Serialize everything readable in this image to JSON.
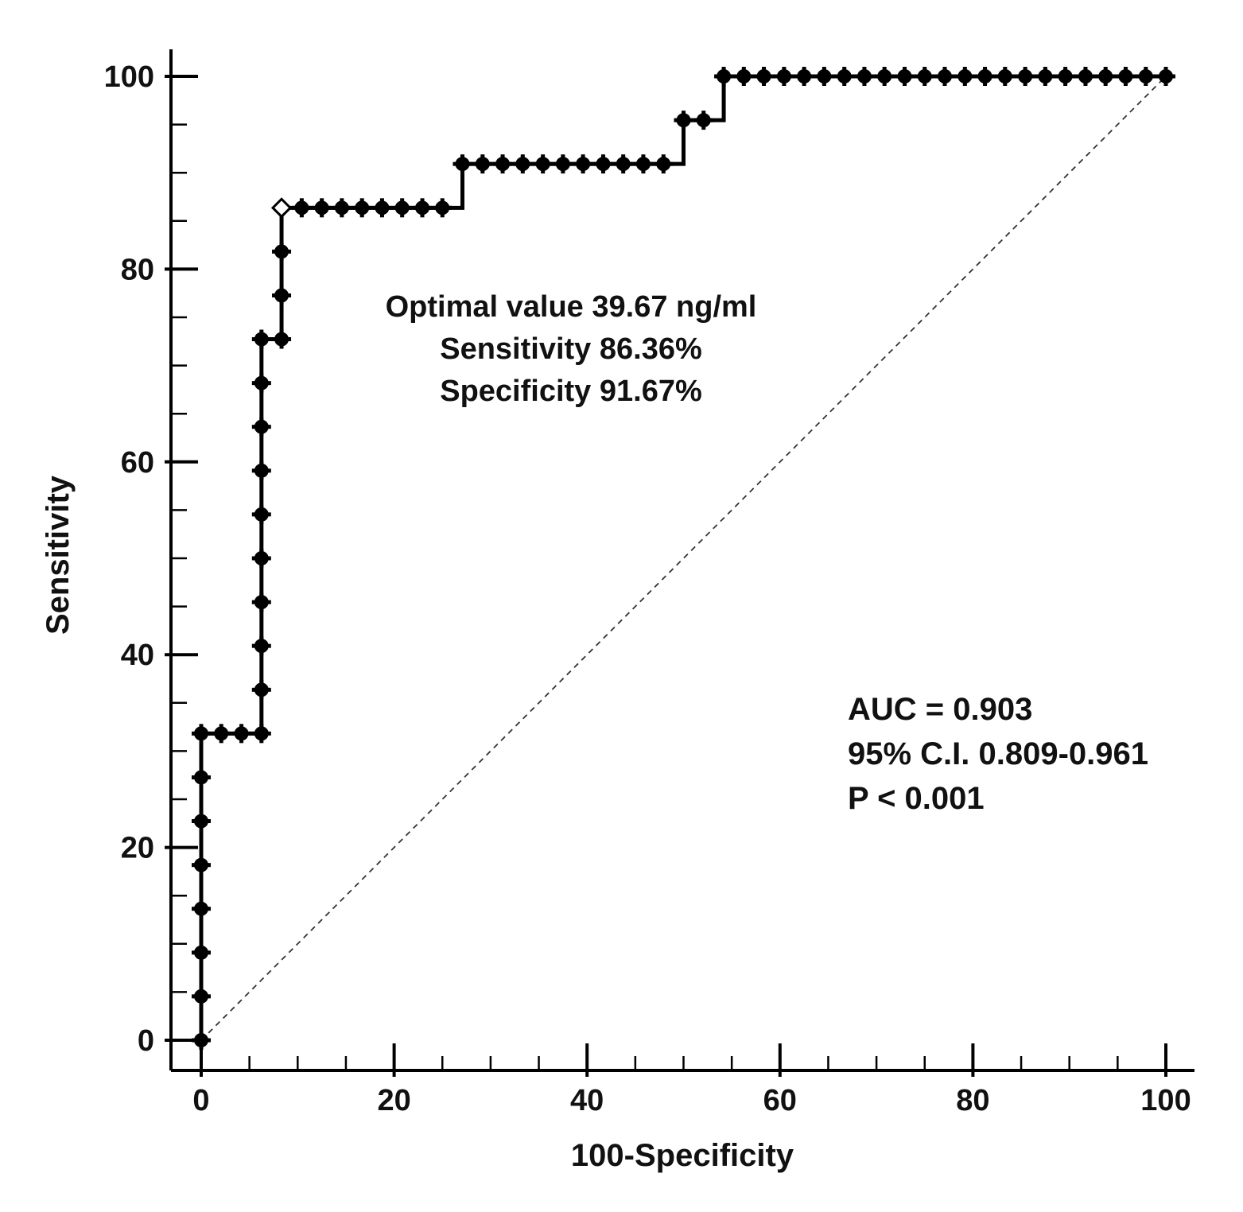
{
  "chart_data": {
    "type": "line",
    "title": "",
    "xlabel": "100-Specificity",
    "ylabel": "Sensitivity",
    "xlim": [
      0,
      100
    ],
    "ylim": [
      0,
      100
    ],
    "xticks": [
      0,
      20,
      40,
      60,
      80,
      100
    ],
    "yticks": [
      0,
      20,
      40,
      60,
      80,
      100
    ],
    "grid": false,
    "series": [
      {
        "name": "ROC curve",
        "step": true,
        "x": [
          0,
          0,
          0,
          0,
          0,
          0,
          0,
          0,
          2.08,
          4.17,
          6.25,
          6.25,
          6.25,
          6.25,
          6.25,
          6.25,
          6.25,
          6.25,
          6.25,
          6.25,
          8.33,
          8.33,
          8.33,
          8.33,
          10.42,
          12.5,
          14.58,
          16.67,
          18.75,
          20.83,
          22.92,
          25,
          27.08,
          29.17,
          31.25,
          33.33,
          35.42,
          37.5,
          39.58,
          41.67,
          43.75,
          45.83,
          47.92,
          50,
          52.08,
          54.17,
          56.25,
          58.33,
          60.42,
          62.5,
          64.58,
          66.67,
          68.75,
          70.83,
          72.92,
          75,
          77.08,
          79.17,
          81.25,
          83.33,
          85.42,
          87.5,
          89.58,
          91.67,
          93.75,
          95.83,
          97.92,
          100
        ],
        "y": [
          0,
          4.55,
          9.09,
          13.64,
          18.18,
          22.73,
          27.27,
          31.82,
          31.82,
          31.82,
          31.82,
          36.36,
          40.91,
          45.45,
          50,
          54.55,
          59.09,
          63.64,
          68.18,
          72.73,
          72.73,
          77.27,
          81.82,
          86.36,
          86.36,
          86.36,
          86.36,
          86.36,
          86.36,
          86.36,
          86.36,
          86.36,
          90.91,
          90.91,
          90.91,
          90.91,
          90.91,
          90.91,
          90.91,
          90.91,
          90.91,
          90.91,
          90.91,
          95.45,
          95.45,
          100,
          100,
          100,
          100,
          100,
          100,
          100,
          100,
          100,
          100,
          100,
          100,
          100,
          100,
          100,
          100,
          100,
          100,
          100,
          100,
          100,
          100,
          100
        ]
      },
      {
        "name": "Reference line",
        "style": "dashed",
        "x": [
          0,
          100
        ],
        "y": [
          0,
          100
        ]
      }
    ],
    "optimal_point": {
      "x": 8.33,
      "y": 86.36
    },
    "annotations": {
      "optimal_lines": [
        "Optimal value 39.67 ng/ml",
        "Sensitivity 86.36%",
        "Specificity 91.67%"
      ],
      "stats_lines": [
        "AUC = 0.903",
        "95% C.I. 0.809-0.961",
        "P < 0.001"
      ]
    }
  }
}
